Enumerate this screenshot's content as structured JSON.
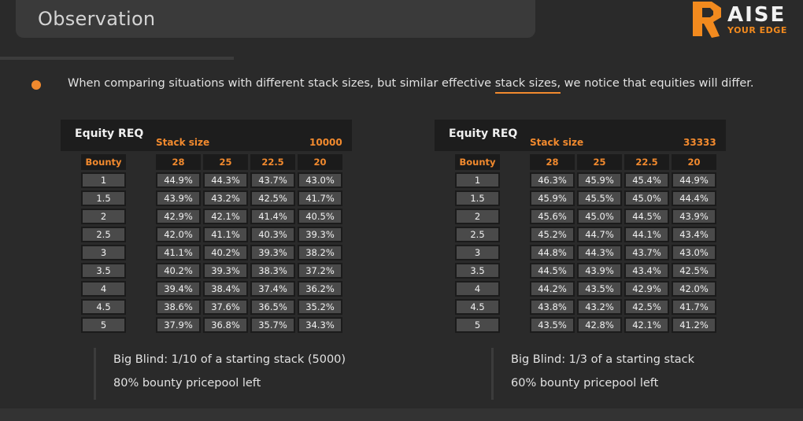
{
  "header": {
    "title": "Observation"
  },
  "logo": {
    "main": "AISE",
    "sub": "YOUR EDGE",
    "brand_color": "#f28a1e"
  },
  "bullet": {
    "text_before": "When comparing situations with different stack sizes, but similar effective ",
    "highlight": "stack sizes,",
    "text_after": " we notice that equities will differ."
  },
  "tables": [
    {
      "title": "Equity REQ",
      "stack_label": "Stack size",
      "stack_value": "10000",
      "headers": [
        "Bounty",
        "28",
        "25",
        "22.5",
        "20"
      ],
      "rows": [
        [
          "1",
          "44.9%",
          "44.3%",
          "43.7%",
          "43.0%"
        ],
        [
          "1.5",
          "43.9%",
          "43.2%",
          "42.5%",
          "41.7%"
        ],
        [
          "2",
          "42.9%",
          "42.1%",
          "41.4%",
          "40.5%"
        ],
        [
          "2.5",
          "42.0%",
          "41.1%",
          "40.3%",
          "39.3%"
        ],
        [
          "3",
          "41.1%",
          "40.2%",
          "39.3%",
          "38.2%"
        ],
        [
          "3.5",
          "40.2%",
          "39.3%",
          "38.3%",
          "37.2%"
        ],
        [
          "4",
          "39.4%",
          "38.4%",
          "37.4%",
          "36.2%"
        ],
        [
          "4.5",
          "38.6%",
          "37.6%",
          "36.5%",
          "35.2%"
        ],
        [
          "5",
          "37.9%",
          "36.8%",
          "35.7%",
          "34.3%"
        ]
      ],
      "notes": [
        "Big Blind: 1/10 of a starting stack (5000)",
        "80% bounty pricepool left"
      ]
    },
    {
      "title": "Equity REQ",
      "stack_label": "Stack size",
      "stack_value": "33333",
      "headers": [
        "Bounty",
        "28",
        "25",
        "22.5",
        "20"
      ],
      "rows": [
        [
          "1",
          "46.3%",
          "45.9%",
          "45.4%",
          "44.9%"
        ],
        [
          "1.5",
          "45.9%",
          "45.5%",
          "45.0%",
          "44.4%"
        ],
        [
          "2",
          "45.6%",
          "45.0%",
          "44.5%",
          "43.9%"
        ],
        [
          "2.5",
          "45.2%",
          "44.7%",
          "44.1%",
          "43.4%"
        ],
        [
          "3",
          "44.8%",
          "44.3%",
          "43.7%",
          "43.0%"
        ],
        [
          "3.5",
          "44.5%",
          "43.9%",
          "43.4%",
          "42.5%"
        ],
        [
          "4",
          "44.2%",
          "43.5%",
          "42.9%",
          "42.0%"
        ],
        [
          "4.5",
          "43.8%",
          "43.2%",
          "42.5%",
          "41.7%"
        ],
        [
          "5",
          "43.5%",
          "42.8%",
          "42.1%",
          "41.2%"
        ]
      ],
      "notes": [
        "Big Blind: 1/3 of a starting stack",
        "60% bounty pricepool left"
      ]
    }
  ]
}
